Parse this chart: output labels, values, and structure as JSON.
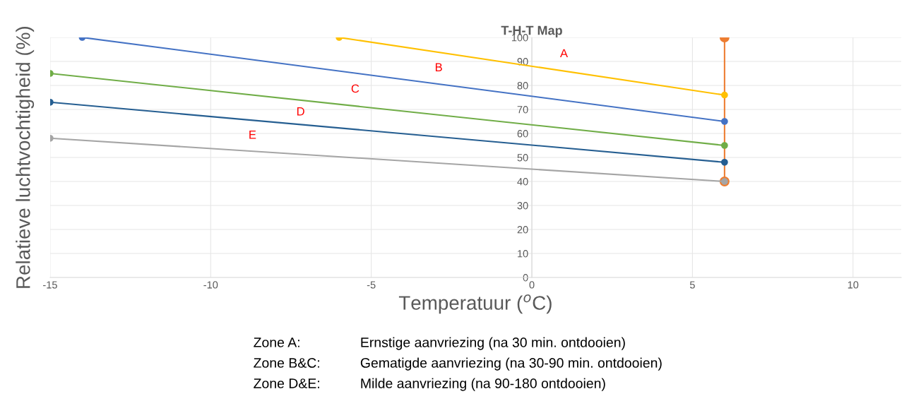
{
  "chart_data": {
    "type": "line",
    "title": "T-H-T Map",
    "xlabel": "Temperatuur ($^{o}$C)",
    "ylabel": "Relatieve luchtvochtigheid (%)",
    "series": [
      {
        "color": "#ed7d31",
        "x": [
          6,
          6
        ],
        "values": [
          100,
          40
        ]
      },
      {
        "color": "#ffc000",
        "x": [
          -6,
          6
        ],
        "values": [
          100,
          76
        ]
      },
      {
        "color": "#4472c4",
        "x": [
          -14,
          6
        ],
        "values": [
          100,
          65
        ]
      },
      {
        "color": "#70ad47",
        "x": [
          -15,
          6
        ],
        "values": [
          85,
          55
        ]
      },
      {
        "color": "#255e91",
        "x": [
          -15,
          6
        ],
        "values": [
          73,
          48
        ]
      },
      {
        "color": "#a5a5a5",
        "x": [
          -15,
          6
        ],
        "values": [
          58,
          40
        ]
      }
    ],
    "xlim": [
      -15,
      11.5
    ],
    "xticks": [
      -15,
      -10,
      -5,
      0,
      5,
      10
    ],
    "ylim": [
      0,
      100
    ],
    "yticks": [
      0,
      10,
      20,
      30,
      40,
      50,
      60,
      70,
      80,
      90,
      100
    ],
    "grid": true,
    "marker": "circle",
    "line_style": "solid",
    "annotations": [
      "A",
      "B",
      "C",
      "D",
      "E",
      "Zone A:",
      "Ernstige aanvriezing (na 30 min. ontdooien)",
      "Zone B&C:",
      "Gematigde aanvriezing (na 30-90 min. ontdooien)",
      "Zone D&E:",
      "Milde aanvriezing (na 90-180 ontdooien)"
    ]
  }
}
